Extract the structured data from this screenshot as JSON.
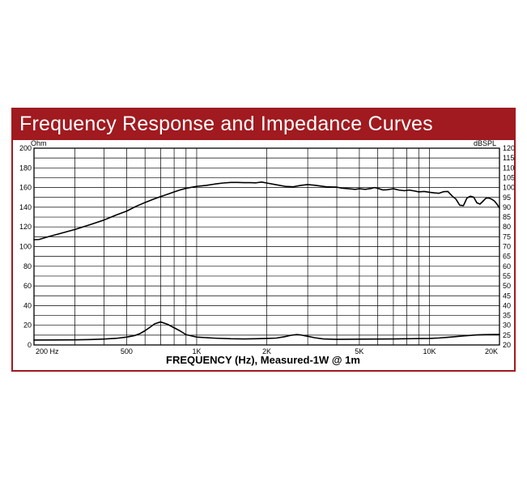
{
  "colors": {
    "accent": "#a01a1f",
    "curve": "#000000"
  },
  "chart_data": {
    "type": "line",
    "title": "Frequency Response and Impedance Curves",
    "xlabel": "FREQUENCY (Hz), Measured-1W @ 1m",
    "x_scale": "log",
    "xlim": [
      200,
      20000
    ],
    "x_tick_labels": [
      {
        "value": 200,
        "label": "200 Hz"
      },
      {
        "value": 500,
        "label": "500"
      },
      {
        "value": 1000,
        "label": "1K"
      },
      {
        "value": 2000,
        "label": "2K"
      },
      {
        "value": 5000,
        "label": "5K"
      },
      {
        "value": 10000,
        "label": "10K"
      },
      {
        "value": 20000,
        "label": "20K"
      }
    ],
    "left_axis": {
      "unit": "Ohm",
      "ylim": [
        0,
        200
      ],
      "ticks": [
        "0",
        "20",
        "40",
        "60",
        "80",
        "100",
        "120",
        "140",
        "160",
        "180",
        "200"
      ]
    },
    "right_axis": {
      "unit": "dBSPL",
      "ylim": [
        20,
        120
      ],
      "ticks": [
        "20",
        "25",
        "30",
        "35",
        "40",
        "45",
        "50",
        "55",
        "60",
        "65",
        "70",
        "75",
        "80",
        "85",
        "90",
        "95",
        "100",
        "105",
        "110",
        "115",
        "120"
      ]
    },
    "grid": true,
    "series": [
      {
        "axis": "right",
        "x": [
          200,
          210,
          230,
          260,
          300,
          350,
          400,
          450,
          500,
          550,
          600,
          650,
          700,
          750,
          800,
          850,
          900,
          1000,
          1100,
          1200,
          1300,
          1400,
          1500,
          1600,
          1700,
          1800,
          1900,
          2000,
          2200,
          2400,
          2600,
          2800,
          3000,
          3200,
          3400,
          3600,
          3800,
          4000,
          4200,
          4400,
          4600,
          4800,
          5000,
          5300,
          5600,
          5800,
          6000,
          6300,
          6600,
          7000,
          7400,
          7800,
          8200,
          8600,
          9000,
          9500,
          10000,
          10500,
          11000,
          11500,
          12000,
          12500,
          13000,
          13500,
          14000,
          14500,
          15000,
          15500,
          16000,
          16500,
          17000,
          17500,
          18000,
          18500,
          19000,
          19500,
          20000
        ],
        "y": [
          73.5,
          73.6,
          75,
          76.7,
          78.7,
          81.2,
          83.5,
          86,
          88,
          90.5,
          92.4,
          94,
          95.4,
          96.6,
          97.8,
          98.8,
          99.6,
          100.6,
          101.1,
          101.8,
          102.3,
          102.6,
          102.6,
          102.5,
          102.5,
          102.4,
          102.8,
          102.3,
          101.4,
          100.6,
          100.4,
          101.1,
          101.5,
          101.2,
          100.8,
          100.4,
          100.3,
          100.2,
          99.7,
          99.5,
          99.3,
          99.1,
          99.4,
          99.1,
          99.5,
          100,
          99.6,
          98.8,
          98.9,
          99.4,
          98.7,
          98.4,
          98.7,
          98.3,
          97.8,
          98,
          97.6,
          97.3,
          97.1,
          97.9,
          98,
          95.8,
          94.1,
          91,
          90.8,
          94.7,
          95.6,
          95.1,
          92.2,
          91.6,
          93.1,
          94.6,
          94.7,
          94.1,
          93.2,
          91.6,
          89.6
        ]
      },
      {
        "axis": "left",
        "x": [
          200,
          250,
          300,
          350,
          400,
          450,
          500,
          540,
          570,
          600,
          630,
          660,
          700,
          750,
          800,
          850,
          900,
          1000,
          1200,
          1400,
          1600,
          1800,
          2000,
          2200,
          2400,
          2500,
          2600,
          2700,
          2800,
          3000,
          3200,
          3500,
          4000,
          5000,
          6000,
          7000,
          8000,
          9000,
          10000,
          11000,
          12000,
          13000,
          14000,
          15000,
          16000,
          17000,
          18000,
          20000
        ],
        "y": [
          5,
          5.1,
          5.2,
          5.5,
          6,
          6.7,
          8,
          9.5,
          11.5,
          14.5,
          18,
          21.5,
          23.4,
          21,
          17.5,
          14.2,
          10.5,
          8,
          6.9,
          6.3,
          6.1,
          6.3,
          6.6,
          7,
          8.5,
          9.5,
          10.2,
          10.6,
          10.2,
          8.8,
          7.4,
          6.1,
          5.7,
          5.9,
          6,
          6.1,
          6.3,
          6.5,
          6.6,
          7.1,
          7.8,
          8.5,
          9.2,
          9.7,
          10.2,
          10.4,
          10.6,
          10.7
        ]
      }
    ]
  }
}
